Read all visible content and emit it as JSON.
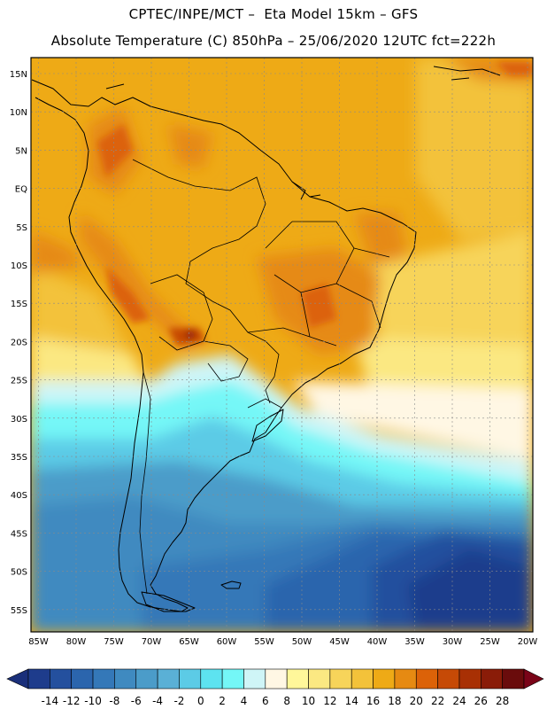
{
  "header": {
    "line1": "CPTEC/INPE/MCT –  Eta Model 15km – GFS",
    "line2": "Absolute Temperature (C) 850hPa – 25/06/2020 12UTC fct=222h"
  },
  "axes": {
    "lat_labels": [
      "15N",
      "10N",
      "5N",
      "EQ",
      "5S",
      "10S",
      "15S",
      "20S",
      "25S",
      "30S",
      "35S",
      "40S",
      "45S",
      "50S",
      "55S"
    ],
    "lon_labels": [
      "85W",
      "80W",
      "75W",
      "70W",
      "65W",
      "60W",
      "55W",
      "50W",
      "45W",
      "40W",
      "35W",
      "30W",
      "25W",
      "20W"
    ]
  },
  "legend": {
    "ticks": [
      "-14",
      "-12",
      "-10",
      "-8",
      "-6",
      "-4",
      "-2",
      "0",
      "2",
      "4",
      "6",
      "8",
      "10",
      "12",
      "14",
      "16",
      "18",
      "20",
      "22",
      "24",
      "26",
      "28"
    ],
    "colors": [
      "#1e3c8c",
      "#24509e",
      "#2b65ad",
      "#3478b8",
      "#3f8ac0",
      "#4b9cc9",
      "#5ab0d6",
      "#5ccbe6",
      "#5de3f0",
      "#74f7f7",
      "#cff5f7",
      "#fff7e4",
      "#fff79a",
      "#fbe882",
      "#f7d45a",
      "#f3c23a",
      "#eeaa16",
      "#e68a12",
      "#dc6208",
      "#c64a06",
      "#a83004",
      "#8a1c08",
      "#6a0c0c"
    ],
    "under_color": "#1a2f7a",
    "over_color": "#7a0418"
  }
}
